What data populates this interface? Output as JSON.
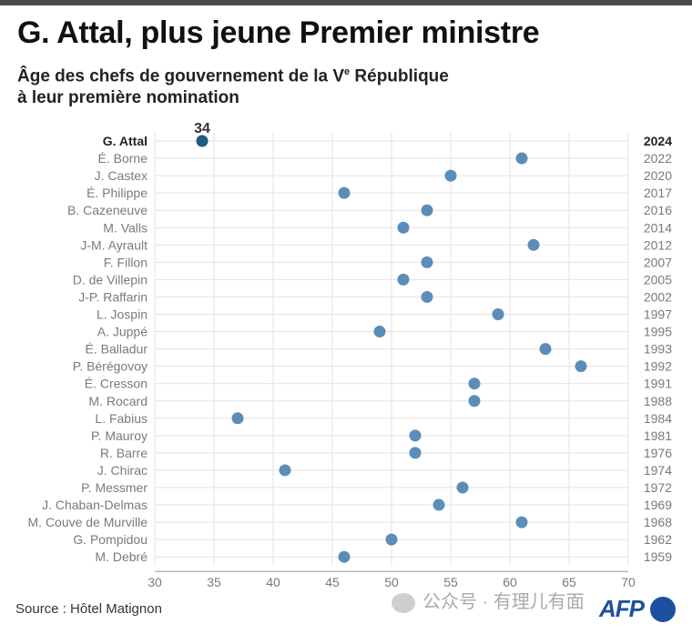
{
  "title": "G. Attal, plus jeune Premier ministre",
  "subtitle": {
    "line1_prefix": "Âge des chefs de gouvernement de la V",
    "line1_sup": "e",
    "line1_suffix": " République",
    "line2": "à leur première nomination"
  },
  "source": "Source : Hôtel Matignon",
  "watermark": "公众号 · 有理儿有面",
  "logo": "AFP",
  "colors": {
    "dot": "#5b8db8",
    "highlight": "#1d5a84",
    "grid": "#e3e3e3",
    "axis": "#9a9a9a"
  },
  "chart_data": {
    "type": "scatter",
    "title": "G. Attal, plus jeune Premier ministre",
    "xlabel": "",
    "ylabel": "",
    "xlim": [
      30,
      70
    ],
    "xticks": [
      30,
      35,
      40,
      45,
      50,
      55,
      60,
      65,
      70
    ],
    "highlight_label": "34",
    "series": [
      {
        "name": "G. Attal",
        "year": "2024",
        "age": 34,
        "highlight": true
      },
      {
        "name": "É. Borne",
        "year": "2022",
        "age": 61
      },
      {
        "name": "J. Castex",
        "year": "2020",
        "age": 55
      },
      {
        "name": "É. Philippe",
        "year": "2017",
        "age": 46
      },
      {
        "name": "B. Cazeneuve",
        "year": "2016",
        "age": 53
      },
      {
        "name": "M. Valls",
        "year": "2014",
        "age": 51
      },
      {
        "name": "J-M. Ayrault",
        "year": "2012",
        "age": 62
      },
      {
        "name": "F. Fillon",
        "year": "2007",
        "age": 53
      },
      {
        "name": "D. de Villepin",
        "year": "2005",
        "age": 51
      },
      {
        "name": "J-P. Raffarin",
        "year": "2002",
        "age": 53
      },
      {
        "name": "L. Jospin",
        "year": "1997",
        "age": 59
      },
      {
        "name": "A. Juppé",
        "year": "1995",
        "age": 49
      },
      {
        "name": "É. Balladur",
        "year": "1993",
        "age": 63
      },
      {
        "name": "P. Bérégovoy",
        "year": "1992",
        "age": 66
      },
      {
        "name": "É. Cresson",
        "year": "1991",
        "age": 57
      },
      {
        "name": "M. Rocard",
        "year": "1988",
        "age": 57
      },
      {
        "name": "L. Fabius",
        "year": "1984",
        "age": 37
      },
      {
        "name": "P. Mauroy",
        "year": "1981",
        "age": 52
      },
      {
        "name": "R. Barre",
        "year": "1976",
        "age": 52
      },
      {
        "name": "J. Chirac",
        "year": "1974",
        "age": 41
      },
      {
        "name": "P. Messmer",
        "year": "1972",
        "age": 56
      },
      {
        "name": "J. Chaban-Delmas",
        "year": "1969",
        "age": 54
      },
      {
        "name": "M. Couve de Murville",
        "year": "1968",
        "age": 61
      },
      {
        "name": "G. Pompidou",
        "year": "1962",
        "age": 50
      },
      {
        "name": "M. Debré",
        "year": "1959",
        "age": 46
      }
    ]
  }
}
